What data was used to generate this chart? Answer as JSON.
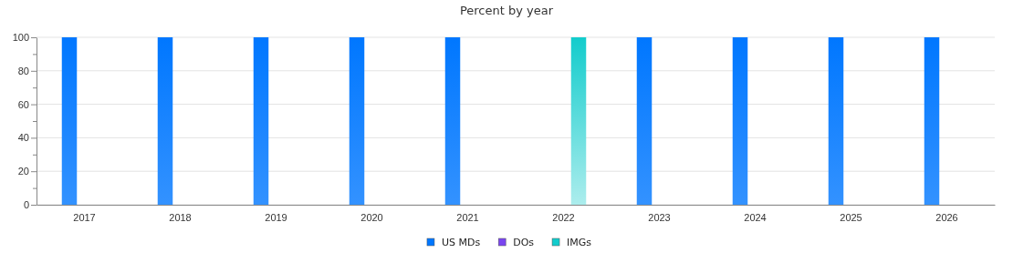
{
  "chart_data": {
    "type": "bar",
    "title": "Percent by year",
    "categories": [
      "2017",
      "2018",
      "2019",
      "2020",
      "2021",
      "2022",
      "2023",
      "2024",
      "2025",
      "2026"
    ],
    "series": [
      {
        "name": "US MDs",
        "color": "#0077ff",
        "values": [
          100,
          100,
          100,
          100,
          100,
          0,
          100,
          100,
          100,
          100
        ]
      },
      {
        "name": "DOs",
        "color": "#7a45f0",
        "values": [
          0,
          0,
          0,
          0,
          0,
          0,
          0,
          0,
          0,
          0
        ]
      },
      {
        "name": "IMGs",
        "color": "#12cccc",
        "values": [
          0,
          0,
          0,
          0,
          0,
          100,
          0,
          0,
          0,
          0
        ]
      }
    ],
    "ylim": [
      0,
      100
    ],
    "yticks": [
      0,
      {
        "value": 10,
        "label": null
      },
      20,
      {
        "value": 30,
        "label": null
      },
      40,
      {
        "value": 50,
        "label": null
      },
      60,
      {
        "value": 70,
        "label": null
      },
      80,
      {
        "value": 90,
        "label": null
      },
      100
    ],
    "grid": "y",
    "legend": "bottom"
  }
}
